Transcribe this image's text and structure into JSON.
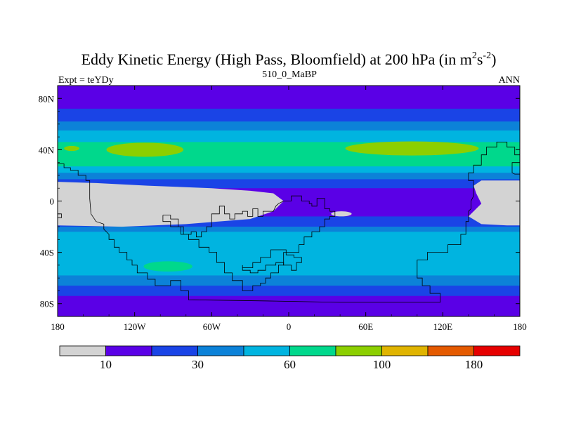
{
  "chart_data": {
    "type": "contour-map",
    "title_text": "Eddy Kinetic Energy (High Pass, Bloomfield) at 200 hPa (in m",
    "title_unit": {
      "base1": "m",
      "sup1": "2",
      "base2": "s",
      "sup2": "-2",
      "close": ")"
    },
    "subtitle_center": "510_0_MaBP",
    "subtitle_left": "Expt = teYDy",
    "subtitle_right": "ANN",
    "xlabel": "",
    "ylabel": "",
    "xlim": [
      -180,
      180
    ],
    "ylim": [
      -90,
      90
    ],
    "lon_ticks": [
      {
        "value": -180,
        "label": "180"
      },
      {
        "value": -120,
        "label": "120W"
      },
      {
        "value": -60,
        "label": "60W"
      },
      {
        "value": 0,
        "label": "0"
      },
      {
        "value": 60,
        "label": "60E"
      },
      {
        "value": 120,
        "label": "120E"
      },
      {
        "value": 180,
        "label": "180"
      }
    ],
    "lat_ticks": [
      {
        "value": 80,
        "label": "80N"
      },
      {
        "value": 40,
        "label": "40N"
      },
      {
        "value": 0,
        "label": "0"
      },
      {
        "value": -40,
        "label": "40S"
      },
      {
        "value": -80,
        "label": "80S"
      }
    ],
    "levels": [
      10,
      20,
      30,
      45,
      60,
      80,
      100,
      130,
      180
    ],
    "colorbar": {
      "colors": [
        "#d3d3d3",
        "#5a00e6",
        "#1a44e6",
        "#0c82d8",
        "#00b4e0",
        "#00d88c",
        "#8ccf00",
        "#e0b400",
        "#e45a00",
        "#e60000"
      ],
      "labels": [
        {
          "after_box": 1,
          "label": "10"
        },
        {
          "after_box": 3,
          "label": "30"
        },
        {
          "after_box": 5,
          "label": "60"
        },
        {
          "after_box": 7,
          "label": "100"
        },
        {
          "after_box": 9,
          "label": "180"
        }
      ]
    },
    "zonal_bands": [
      {
        "lat": [
          72,
          90
        ],
        "level": 1
      },
      {
        "lat": [
          62,
          72
        ],
        "level": 2
      },
      {
        "lat": [
          55,
          62
        ],
        "level": 3
      },
      {
        "lat": [
          46,
          55
        ],
        "level": 4
      },
      {
        "lat": [
          27,
          46
        ],
        "level": 5
      },
      {
        "lat": [
          22,
          27
        ],
        "level": 4
      },
      {
        "lat": [
          17,
          22
        ],
        "level": 3
      },
      {
        "lat": [
          10,
          17
        ],
        "level": 2
      },
      {
        "lat": [
          -12,
          10
        ],
        "level": 1
      },
      {
        "lat": [
          -20,
          -12
        ],
        "level": 2
      },
      {
        "lat": [
          -24,
          -20
        ],
        "level": 3
      },
      {
        "lat": [
          -32,
          -24
        ],
        "level": 4
      },
      {
        "lat": [
          -58,
          -32
        ],
        "level": 4
      },
      {
        "lat": [
          -66,
          -58
        ],
        "level": 3
      },
      {
        "lat": [
          -74,
          -66
        ],
        "level": 2
      },
      {
        "lat": [
          -90,
          -74
        ],
        "level": 1
      }
    ],
    "features": [
      {
        "name": "eddy-max-north-west",
        "level": 6,
        "shape": "ellipse",
        "lon": -112,
        "lat": 40,
        "rx": 30,
        "ry": 5.5
      },
      {
        "name": "eddy-max-north-east",
        "level": 6,
        "shape": "ellipse",
        "lon": 96,
        "lat": 41,
        "rx": 52,
        "ry": 5.5
      },
      {
        "name": "eddy-max-north-edge",
        "level": 6,
        "shape": "ellipse",
        "lon": -169,
        "lat": 41,
        "rx": 6,
        "ry": 2
      },
      {
        "name": "eddy-max-south",
        "level": 5,
        "shape": "ellipse",
        "lon": -94,
        "lat": -51,
        "rx": 19,
        "ry": 4
      },
      {
        "name": "low-eke-tropics-west",
        "level": 0,
        "shape": "polygon",
        "points": [
          [
            -180,
            15
          ],
          [
            -150,
            14
          ],
          [
            -110,
            12
          ],
          [
            -60,
            10
          ],
          [
            -30,
            8
          ],
          [
            -12,
            6
          ],
          [
            -4,
            0
          ],
          [
            -12,
            -8
          ],
          [
            -30,
            -14
          ],
          [
            -80,
            -18
          ],
          [
            -130,
            -20
          ],
          [
            -180,
            -19
          ]
        ]
      },
      {
        "name": "low-eke-tropics-east",
        "level": 0,
        "shape": "polygon",
        "points": [
          [
            180,
            16
          ],
          [
            150,
            16
          ],
          [
            144,
            12
          ],
          [
            146,
            6
          ],
          [
            150,
            -2
          ],
          [
            140,
            -12
          ],
          [
            150,
            -18
          ],
          [
            170,
            -19
          ],
          [
            180,
            -19
          ]
        ]
      },
      {
        "name": "low-eke-patch",
        "level": 0,
        "shape": "ellipse",
        "lon": 41,
        "lat": -10,
        "rx": 8,
        "ry": 2
      }
    ],
    "coastlines": [
      [
        [
          -180,
          29
        ],
        [
          -175,
          29
        ],
        [
          -175,
          26
        ],
        [
          -170,
          26
        ],
        [
          -170,
          24
        ],
        [
          -164,
          24
        ],
        [
          -164,
          20
        ],
        [
          -158,
          20
        ],
        [
          -158,
          16
        ],
        [
          -155,
          16
        ],
        [
          -155,
          2
        ],
        [
          -154,
          -10
        ],
        [
          -150,
          -16
        ],
        [
          -144,
          -18
        ],
        [
          -144,
          -22
        ],
        [
          -140,
          -26
        ],
        [
          -140,
          -30
        ],
        [
          -136,
          -30
        ],
        [
          -136,
          -36
        ],
        [
          -132,
          -36
        ],
        [
          -132,
          -40
        ],
        [
          -126,
          -40
        ],
        [
          -126,
          -46
        ],
        [
          -122,
          -46
        ],
        [
          -122,
          -50
        ],
        [
          -118,
          -50
        ],
        [
          -118,
          -56
        ],
        [
          -110,
          -56
        ],
        [
          -110,
          -61
        ],
        [
          -104,
          -61
        ],
        [
          -104,
          -66
        ],
        [
          -92,
          -66
        ],
        [
          -92,
          -62
        ],
        [
          -84,
          -62
        ],
        [
          -84,
          -70
        ],
        [
          -78,
          -70
        ],
        [
          -78,
          -77
        ],
        [
          -10,
          -78
        ],
        [
          40,
          -79
        ],
        [
          118,
          -79
        ],
        [
          118,
          -72
        ],
        [
          110,
          -72
        ],
        [
          110,
          -66
        ],
        [
          104,
          -66
        ],
        [
          104,
          -60
        ],
        [
          100,
          -60
        ],
        [
          100,
          -46
        ],
        [
          108,
          -46
        ],
        [
          108,
          -40
        ],
        [
          124,
          -40
        ],
        [
          124,
          -34
        ],
        [
          134,
          -34
        ],
        [
          134,
          -26
        ],
        [
          138,
          -26
        ],
        [
          138,
          -16
        ],
        [
          140,
          -16
        ],
        [
          140,
          -8
        ],
        [
          142,
          -6
        ],
        [
          142,
          0
        ],
        [
          144,
          4
        ],
        [
          144,
          16
        ],
        [
          140,
          16
        ],
        [
          140,
          22
        ],
        [
          144,
          22
        ],
        [
          144,
          28
        ],
        [
          150,
          28
        ],
        [
          150,
          36
        ],
        [
          154,
          36
        ],
        [
          154,
          42
        ],
        [
          162,
          42
        ],
        [
          162,
          46
        ],
        [
          170,
          46
        ],
        [
          170,
          42
        ],
        [
          176,
          42
        ],
        [
          176,
          36
        ],
        [
          180,
          36
        ]
      ],
      [
        [
          -180,
          -13
        ],
        [
          -177,
          -13
        ],
        [
          -177,
          -10
        ],
        [
          -180,
          -10
        ]
      ],
      [
        [
          -98,
          -11
        ],
        [
          -92,
          -11
        ],
        [
          -92,
          -14
        ],
        [
          -86,
          -14
        ],
        [
          -86,
          -20
        ],
        [
          -82,
          -20
        ],
        [
          -82,
          -26
        ],
        [
          -76,
          -26
        ],
        [
          -76,
          -24
        ],
        [
          -72,
          -24
        ],
        [
          -72,
          -28
        ],
        [
          -68,
          -28
        ],
        [
          -68,
          -24
        ],
        [
          -64,
          -24
        ],
        [
          -64,
          -20
        ],
        [
          -60,
          -20
        ],
        [
          -60,
          -10
        ],
        [
          -54,
          -10
        ],
        [
          -54,
          -4
        ],
        [
          -50,
          -4
        ],
        [
          -50,
          -10
        ],
        [
          -46,
          -10
        ],
        [
          -46,
          -14
        ],
        [
          -42,
          -14
        ],
        [
          -42,
          -10
        ],
        [
          -36,
          -10
        ],
        [
          -36,
          -8
        ],
        [
          -32,
          -8
        ],
        [
          -32,
          -12
        ],
        [
          -28,
          -12
        ],
        [
          -28,
          -6
        ],
        [
          -24,
          -6
        ],
        [
          -24,
          -12
        ],
        [
          -20,
          -12
        ],
        [
          -20,
          -8
        ],
        [
          -12,
          -8
        ],
        [
          -10,
          -4
        ],
        [
          -8,
          -2
        ],
        [
          -4,
          0
        ],
        [
          2,
          0
        ],
        [
          2,
          4
        ],
        [
          10,
          4
        ],
        [
          10,
          0
        ],
        [
          16,
          0
        ],
        [
          16,
          -2
        ],
        [
          18,
          -2
        ],
        [
          18,
          -4
        ],
        [
          22,
          -4
        ],
        [
          22,
          2
        ],
        [
          28,
          2
        ],
        [
          28,
          -6
        ],
        [
          32,
          -6
        ],
        [
          32,
          -8
        ],
        [
          36,
          -8
        ],
        [
          36,
          -12
        ],
        [
          32,
          -12
        ],
        [
          32,
          -14
        ],
        [
          28,
          -14
        ],
        [
          28,
          -20
        ],
        [
          24,
          -20
        ],
        [
          24,
          -24
        ],
        [
          18,
          -24
        ],
        [
          18,
          -28
        ],
        [
          12,
          -28
        ],
        [
          12,
          -34
        ],
        [
          8,
          -34
        ],
        [
          8,
          -40
        ],
        [
          2,
          -40
        ],
        [
          -4,
          -40
        ],
        [
          -4,
          -50
        ],
        [
          -8,
          -50
        ],
        [
          -8,
          -56
        ],
        [
          -14,
          -56
        ],
        [
          -14,
          -60
        ],
        [
          -18,
          -60
        ],
        [
          -18,
          -64
        ],
        [
          -22,
          -64
        ],
        [
          -22,
          -66
        ],
        [
          -28,
          -66
        ],
        [
          -28,
          -70
        ],
        [
          -36,
          -70
        ],
        [
          -36,
          -62
        ],
        [
          -44,
          -62
        ],
        [
          -44,
          -56
        ],
        [
          -50,
          -56
        ],
        [
          -50,
          -48
        ],
        [
          -56,
          -48
        ],
        [
          -56,
          -40
        ],
        [
          -62,
          -40
        ],
        [
          -62,
          -36
        ],
        [
          -70,
          -36
        ],
        [
          -70,
          -30
        ],
        [
          -78,
          -30
        ],
        [
          -78,
          -26
        ],
        [
          -84,
          -26
        ],
        [
          -84,
          -20
        ],
        [
          -92,
          -20
        ],
        [
          -92,
          -16
        ],
        [
          -98,
          -16
        ],
        [
          -98,
          -11
        ]
      ],
      [
        [
          -36,
          -50
        ],
        [
          -36,
          -54
        ],
        [
          -30,
          -54
        ],
        [
          -30,
          -56
        ],
        [
          -24,
          -56
        ],
        [
          -24,
          -54
        ],
        [
          -18,
          -54
        ],
        [
          -18,
          -50
        ],
        [
          -10,
          -50
        ],
        [
          -10,
          -48
        ],
        [
          -4,
          -48
        ],
        [
          -4,
          -50
        ],
        [
          2,
          -50
        ],
        [
          2,
          -54
        ],
        [
          6,
          -54
        ],
        [
          6,
          -48
        ],
        [
          10,
          -48
        ],
        [
          10,
          -44
        ],
        [
          4,
          -44
        ],
        [
          4,
          -42
        ],
        [
          -2,
          -42
        ],
        [
          -2,
          -38
        ],
        [
          -14,
          -38
        ],
        [
          -14,
          -44
        ],
        [
          -22,
          -44
        ],
        [
          -22,
          -48
        ],
        [
          -28,
          -48
        ],
        [
          -28,
          -52
        ],
        [
          -36,
          -52
        ],
        [
          -36,
          -50
        ]
      ],
      [
        [
          180,
          21
        ],
        [
          176,
          21
        ],
        [
          174,
          22
        ],
        [
          174,
          30
        ],
        [
          180,
          30
        ]
      ]
    ]
  }
}
